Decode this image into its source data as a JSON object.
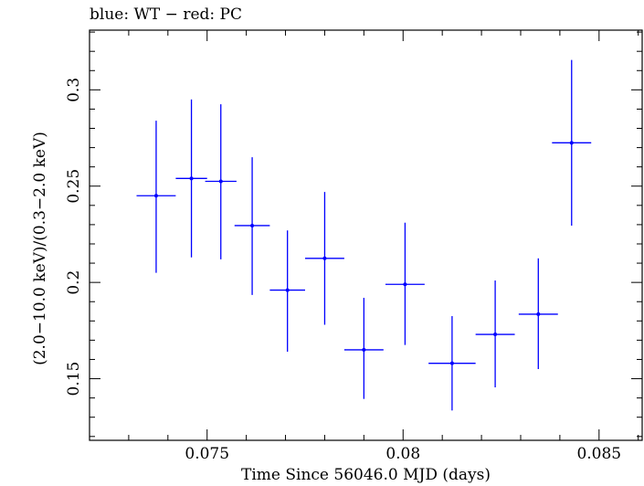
{
  "chart_data": {
    "type": "scatter",
    "title": "blue: WT − red: PC",
    "xlabel": "Time Since 56046.0 MJD (days)",
    "ylabel": "(2.0−10.0 keV)/(0.3−2.0 keV)",
    "xlim": [
      0.072,
      0.0861
    ],
    "ylim": [
      0.118,
      0.331
    ],
    "xticks": [
      0.075,
      0.08,
      0.085
    ],
    "xtick_labels": [
      "0.075",
      "0.08",
      "0.085"
    ],
    "yticks": [
      0.15,
      0.2,
      0.25,
      0.3
    ],
    "ytick_labels": [
      "0.15",
      "0.2",
      "0.25",
      "0.3"
    ],
    "grid": false,
    "colors": {
      "WT": "#0000ff",
      "axes": "#000000"
    },
    "series": [
      {
        "name": "WT",
        "points": [
          {
            "x": 0.0737,
            "xerr": 0.0005,
            "y": 0.245,
            "ylow": 0.205,
            "yhigh": 0.284
          },
          {
            "x": 0.0746,
            "xerr": 0.0004,
            "y": 0.254,
            "ylow": 0.213,
            "yhigh": 0.295
          },
          {
            "x": 0.07535,
            "xerr": 0.0004,
            "y": 0.2525,
            "ylow": 0.212,
            "yhigh": 0.2925
          },
          {
            "x": 0.07615,
            "xerr": 0.00045,
            "y": 0.2295,
            "ylow": 0.1935,
            "yhigh": 0.265
          },
          {
            "x": 0.07705,
            "xerr": 0.00045,
            "y": 0.196,
            "ylow": 0.164,
            "yhigh": 0.227
          },
          {
            "x": 0.078,
            "xerr": 0.0005,
            "y": 0.2125,
            "ylow": 0.178,
            "yhigh": 0.247
          },
          {
            "x": 0.079,
            "xerr": 0.0005,
            "y": 0.165,
            "ylow": 0.1395,
            "yhigh": 0.192
          },
          {
            "x": 0.08005,
            "xerr": 0.0005,
            "y": 0.199,
            "ylow": 0.1675,
            "yhigh": 0.231
          },
          {
            "x": 0.08125,
            "xerr": 0.0006,
            "y": 0.158,
            "ylow": 0.1335,
            "yhigh": 0.1825
          },
          {
            "x": 0.08235,
            "xerr": 0.0005,
            "y": 0.173,
            "ylow": 0.1455,
            "yhigh": 0.201
          },
          {
            "x": 0.08345,
            "xerr": 0.0005,
            "y": 0.1835,
            "ylow": 0.155,
            "yhigh": 0.2125
          },
          {
            "x": 0.0843,
            "xerr": 0.0005,
            "y": 0.2725,
            "ylow": 0.2295,
            "yhigh": 0.3155
          }
        ]
      }
    ]
  }
}
